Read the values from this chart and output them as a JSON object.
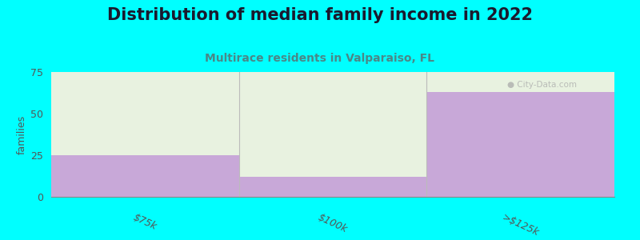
{
  "title": "Distribution of median family income in 2022",
  "subtitle": "Multirace residents in Valparaiso, FL",
  "categories": [
    "$75k",
    "$100k",
    ">$125k"
  ],
  "values": [
    25,
    12,
    63
  ],
  "ylim": [
    0,
    75
  ],
  "yticks": [
    0,
    25,
    50,
    75
  ],
  "bar_color": "#C8A8D8",
  "bg_fill_color": "#E8F2E0",
  "background_color": "#00FFFF",
  "plot_bg_color": "#FFFFFF",
  "title_color": "#1a1a2e",
  "subtitle_color": "#4a8888",
  "ylabel": "families",
  "title_fontsize": 15,
  "subtitle_fontsize": 10,
  "watermark": "● City-Data.com"
}
